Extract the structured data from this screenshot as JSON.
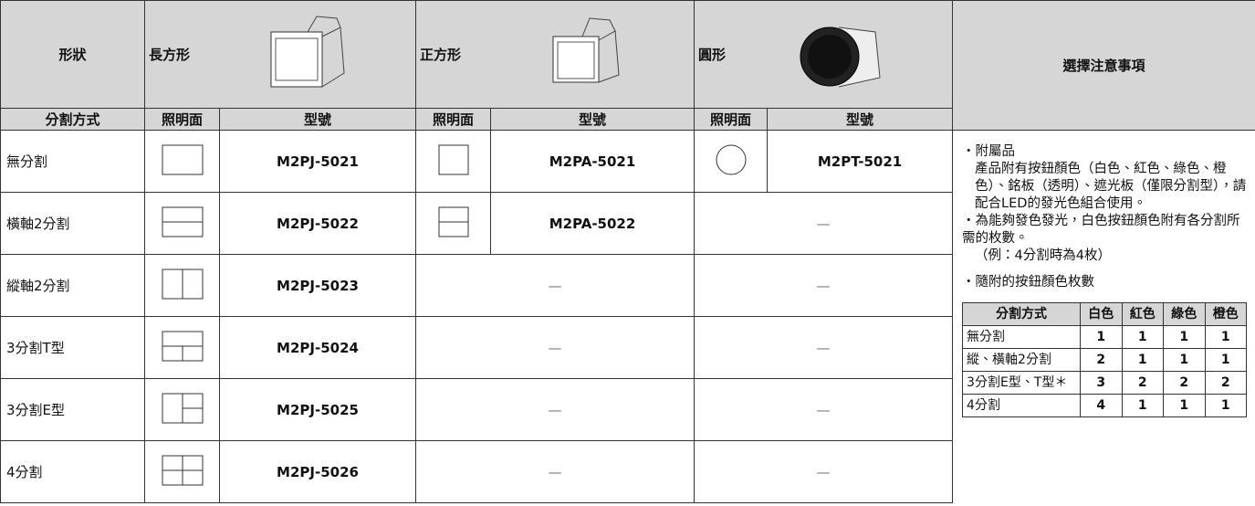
{
  "header": {
    "shape": "形狀",
    "rect": "長方形",
    "square": "正方形",
    "round": "圓形",
    "notes": "選擇注意事項"
  },
  "subheader": [
    "分割方式",
    "照明面",
    "型號",
    "照明面",
    "型號",
    "照明面",
    "型號"
  ],
  "rows": [
    {
      "split": "無分割",
      "rect": "M2PJ-5021",
      "square": "M2PA-5021",
      "round": "M2PT-5021"
    },
    {
      "split": "橫軸2分割",
      "rect": "M2PJ-5022",
      "square": "M2PA-5022",
      "round": "—"
    },
    {
      "split": "縱軸2分割",
      "rect": "M2PJ-5023",
      "square": "—",
      "round": "—"
    },
    {
      "split": "3分割T型",
      "rect": "M2PJ-5024",
      "square": "—",
      "round": "—"
    },
    {
      "split": "3分割E型",
      "rect": "M2PJ-5025",
      "square": "—",
      "round": "—"
    },
    {
      "split": "4分割",
      "rect": "M2PJ-5026",
      "square": "—",
      "round": "—"
    }
  ],
  "notes": {
    "items": [
      "・附屬品",
      "產品附有按鈕顏色（白色、紅色、綠色、橙色）、銘板（透明）、遮光板（僅限分割型），請配合LED的發光色組合使用。",
      "・為能夠發色發光，白色按鈕顏色附有各分割所需的枚數。",
      "（例：4分割時為4枚）",
      "・隨附的按鈕顏色枚數"
    ],
    "table": {
      "header": [
        "分割方式",
        "白色",
        "紅色",
        "綠色",
        "橙色"
      ],
      "rows": [
        [
          "無分割",
          "1",
          "1",
          "1",
          "1"
        ],
        [
          "縱、橫軸2分割",
          "2",
          "1",
          "1",
          "1"
        ],
        [
          "3分割E型、T型＊",
          "3",
          "2",
          "2",
          "2"
        ],
        [
          "4分割",
          "4",
          "1",
          "1",
          "1"
        ]
      ]
    }
  }
}
